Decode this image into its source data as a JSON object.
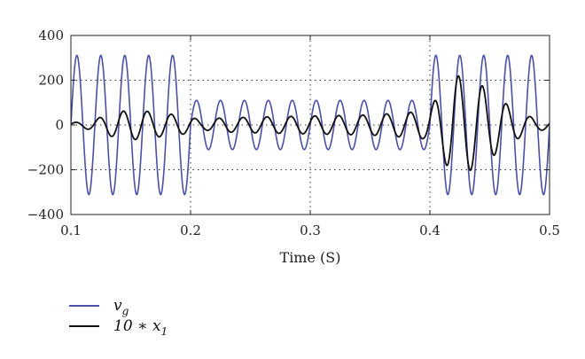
{
  "chart_data": {
    "type": "line",
    "title": "",
    "xlabel": "Time (S)",
    "ylabel": "",
    "xlim": [
      0.1,
      0.5
    ],
    "ylim": [
      -400,
      400
    ],
    "xticks": [
      0.1,
      0.2,
      0.3,
      0.4,
      0.5
    ],
    "xtick_labels": [
      "0.1",
      "0.2",
      "0.3",
      "0.4",
      "0.5"
    ],
    "yticks": [
      -400,
      -200,
      0,
      200,
      400
    ],
    "ytick_labels": [
      "−400",
      "−200",
      "0",
      "200",
      "400"
    ],
    "grid": "dotted at x = 0.2, 0.3, 0.4 and y = -200, 0, 200",
    "legend_position": "bottom-left, below plot",
    "series": [
      {
        "name": "v_g",
        "legend_base": "v",
        "legend_sub": "g",
        "color": "#4b4fa6",
        "frequency_hz": 50,
        "segments": [
          {
            "from": 0.1,
            "to": 0.2,
            "amplitude": 311
          },
          {
            "from": 0.2,
            "to": 0.4,
            "amplitude": 110
          },
          {
            "from": 0.4,
            "to": 0.5,
            "amplitude": 311
          }
        ]
      },
      {
        "name": "10 * x_1",
        "legend_base": "10 ∗ x",
        "legend_sub": "1",
        "color": "#111111",
        "x": [
          0.1,
          0.11,
          0.12,
          0.13,
          0.14,
          0.15,
          0.16,
          0.17,
          0.18,
          0.19,
          0.2,
          0.21,
          0.22,
          0.25,
          0.3,
          0.35,
          0.38,
          0.395,
          0.4,
          0.41,
          0.42,
          0.43,
          0.44,
          0.45,
          0.46,
          0.47,
          0.48,
          0.49,
          0.5
        ],
        "amplitude": [
          10,
          15,
          25,
          45,
          60,
          65,
          65,
          55,
          50,
          45,
          35,
          20,
          30,
          35,
          40,
          45,
          55,
          62,
          80,
          150,
          225,
          210,
          190,
          150,
          110,
          70,
          45,
          25,
          20
        ]
      }
    ]
  }
}
